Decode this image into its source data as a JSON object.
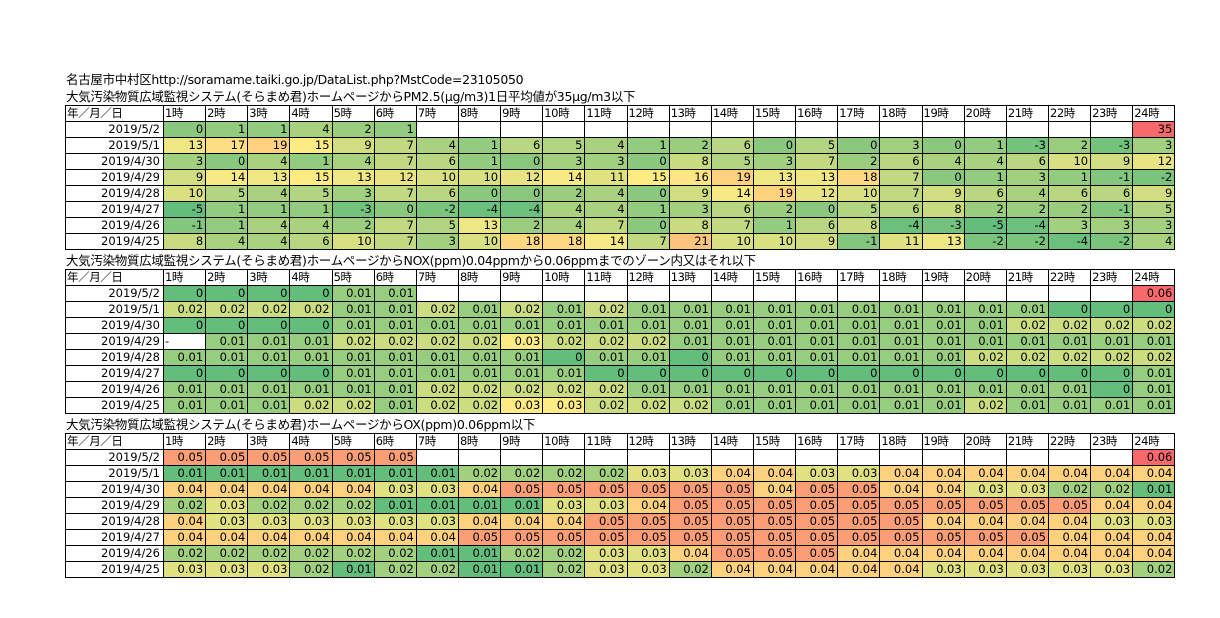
{
  "header": {
    "line1": "名古屋市中村区http://soramame.taiki.go.jp/DataList.php?MstCode=23105050",
    "pm_title": "大気汚染物質広域監視システム(そらまめ君)ホームページからPM2.5(μg/m3)1日平均値が35μg/m3以下",
    "nox_title": "大気汚染物質広域監視システム(そらまめ君)ホームページからNOX(ppm)0.04ppmから0.06ppmまでのゾーン内又はそれ以下",
    "ox_title": "大気汚染物質広域監視システム(そらまめ君)ホームページからOX(ppm)0.06ppm以下"
  },
  "column_header": {
    "corner": "年／月／日",
    "hours": [
      "1時",
      "2時",
      "3時",
      "4時",
      "5時",
      "6時",
      "7時",
      "8時",
      "9時",
      "10時",
      "11時",
      "12時",
      "13時",
      "14時",
      "15時",
      "16時",
      "17時",
      "18時",
      "19時",
      "20時",
      "21時",
      "22時",
      "23時",
      "24時"
    ]
  },
  "colors": {
    "green": "#63be7b",
    "yellow": "#ffeb84",
    "red": "#f8696b",
    "white": "#ffffff"
  },
  "tables": [
    {
      "id": "pm25",
      "scale": [
        -5,
        35
      ],
      "rows": [
        {
          "date": "2019/5/2",
          "values": [
            "0",
            "1",
            "1",
            "4",
            "2",
            "1",
            "",
            "",
            "",
            "",
            "",
            "",
            "",
            "",
            "",
            "",
            "",
            "",
            "",
            "",
            "",
            "",
            "",
            "35"
          ]
        },
        {
          "date": "2019/5/1",
          "values": [
            "13",
            "17",
            "19",
            "15",
            "9",
            "7",
            "4",
            "1",
            "6",
            "5",
            "4",
            "1",
            "2",
            "6",
            "0",
            "5",
            "0",
            "3",
            "0",
            "1",
            "-3",
            "2",
            "-3",
            "3"
          ]
        },
        {
          "date": "2019/4/30",
          "values": [
            "3",
            "0",
            "4",
            "1",
            "4",
            "7",
            "6",
            "1",
            "0",
            "3",
            "3",
            "0",
            "8",
            "5",
            "3",
            "7",
            "2",
            "6",
            "4",
            "4",
            "6",
            "10",
            "9",
            "12"
          ]
        },
        {
          "date": "2019/4/29",
          "values": [
            "9",
            "14",
            "13",
            "15",
            "13",
            "12",
            "10",
            "10",
            "12",
            "14",
            "11",
            "15",
            "16",
            "19",
            "13",
            "13",
            "18",
            "7",
            "0",
            "1",
            "3",
            "1",
            "-1",
            "-2"
          ]
        },
        {
          "date": "2019/4/28",
          "values": [
            "10",
            "5",
            "4",
            "5",
            "3",
            "7",
            "6",
            "0",
            "0",
            "2",
            "4",
            "0",
            "9",
            "14",
            "19",
            "12",
            "10",
            "7",
            "9",
            "6",
            "4",
            "6",
            "6",
            "9"
          ]
        },
        {
          "date": "2019/4/27",
          "values": [
            "-5",
            "1",
            "1",
            "1",
            "-3",
            "0",
            "-2",
            "-4",
            "-4",
            "4",
            "4",
            "1",
            "3",
            "6",
            "2",
            "0",
            "5",
            "6",
            "8",
            "2",
            "2",
            "2",
            "-1",
            "5"
          ]
        },
        {
          "date": "2019/4/26",
          "values": [
            "-1",
            "1",
            "4",
            "4",
            "2",
            "7",
            "5",
            "13",
            "2",
            "4",
            "7",
            "0",
            "8",
            "7",
            "1",
            "6",
            "8",
            "-4",
            "-3",
            "-5",
            "-4",
            "3",
            "3",
            "3"
          ]
        },
        {
          "date": "2019/4/25",
          "values": [
            "8",
            "4",
            "4",
            "6",
            "10",
            "7",
            "3",
            "10",
            "18",
            "18",
            "14",
            "7",
            "21",
            "10",
            "10",
            "9",
            "-1",
            "11",
            "13",
            "-2",
            "-2",
            "-4",
            "-2",
            "4"
          ]
        }
      ]
    },
    {
      "id": "nox",
      "scale": [
        0,
        0.06
      ],
      "rows": [
        {
          "date": "2019/5/2",
          "values": [
            "0",
            "0",
            "0",
            "0",
            "0.01",
            "0.01",
            "",
            "",
            "",
            "",
            "",
            "",
            "",
            "",
            "",
            "",
            "",
            "",
            "",
            "",
            "",
            "",
            "",
            "0.06"
          ]
        },
        {
          "date": "2019/5/1",
          "values": [
            "0.02",
            "0.02",
            "0.02",
            "0.02",
            "0.01",
            "0.01",
            "0.02",
            "0.01",
            "0.02",
            "0.01",
            "0.02",
            "0.01",
            "0.01",
            "0.01",
            "0.01",
            "0.01",
            "0.01",
            "0.01",
            "0.01",
            "0.01",
            "0.01",
            "0",
            "0",
            "0"
          ]
        },
        {
          "date": "2019/4/30",
          "values": [
            "0",
            "0",
            "0",
            "0",
            "0.01",
            "0.01",
            "0.01",
            "0.01",
            "0.01",
            "0.01",
            "0.01",
            "0.01",
            "0.01",
            "0.01",
            "0.01",
            "0.01",
            "0.01",
            "0.01",
            "0.01",
            "0.01",
            "0.02",
            "0.02",
            "0.02",
            "0.02"
          ]
        },
        {
          "date": "2019/4/29",
          "values": [
            "-",
            "0.01",
            "0.01",
            "0.01",
            "0.02",
            "0.02",
            "0.02",
            "0.02",
            "0.03",
            "0.02",
            "0.02",
            "0.02",
            "0.01",
            "0.01",
            "0.01",
            "0.01",
            "0.01",
            "0.01",
            "0.01",
            "0.01",
            "0.01",
            "0.01",
            "0.01",
            "0.01"
          ]
        },
        {
          "date": "2019/4/28",
          "values": [
            "0.01",
            "0.01",
            "0.01",
            "0.01",
            "0.01",
            "0.01",
            "0.01",
            "0.01",
            "0.01",
            "0",
            "0.01",
            "0.01",
            "0",
            "0.01",
            "0.01",
            "0.01",
            "0.01",
            "0.01",
            "0.01",
            "0.02",
            "0.02",
            "0.02",
            "0.02",
            "0.02"
          ]
        },
        {
          "date": "2019/4/27",
          "values": [
            "0",
            "0",
            "0",
            "0",
            "0.01",
            "0.01",
            "0.01",
            "0.01",
            "0.01",
            "0.01",
            "0",
            "0",
            "0",
            "0",
            "0",
            "0",
            "0",
            "0",
            "0",
            "0",
            "0",
            "0",
            "0",
            "0.01"
          ]
        },
        {
          "date": "2019/4/26",
          "values": [
            "0.01",
            "0.01",
            "0.01",
            "0.01",
            "0.01",
            "0.01",
            "0.02",
            "0.02",
            "0.02",
            "0.02",
            "0.02",
            "0.01",
            "0.01",
            "0.01",
            "0.01",
            "0.01",
            "0.01",
            "0.01",
            "0.01",
            "0.01",
            "0.01",
            "0.01",
            "0",
            "0.01"
          ]
        },
        {
          "date": "2019/4/25",
          "values": [
            "0.01",
            "0.01",
            "0.01",
            "0.02",
            "0.02",
            "0.01",
            "0.02",
            "0.02",
            "0.03",
            "0.03",
            "0.02",
            "0.02",
            "0.02",
            "0.01",
            "0.01",
            "0.01",
            "0.01",
            "0.01",
            "0.01",
            "0.02",
            "0.01",
            "0.01",
            "0.01",
            "0.01"
          ]
        }
      ]
    },
    {
      "id": "ox",
      "scale": [
        0.01,
        0.06
      ],
      "rows": [
        {
          "date": "2019/5/2",
          "values": [
            "0.05",
            "0.05",
            "0.05",
            "0.05",
            "0.05",
            "0.05",
            "",
            "",
            "",
            "",
            "",
            "",
            "",
            "",
            "",
            "",
            "",
            "",
            "",
            "",
            "",
            "",
            "",
            "0.06"
          ]
        },
        {
          "date": "2019/5/1",
          "values": [
            "0.01",
            "0.01",
            "0.01",
            "0.01",
            "0.01",
            "0.01",
            "0.01",
            "0.02",
            "0.02",
            "0.02",
            "0.02",
            "0.03",
            "0.03",
            "0.04",
            "0.04",
            "0.03",
            "0.03",
            "0.04",
            "0.04",
            "0.04",
            "0.04",
            "0.04",
            "0.04",
            "0.04"
          ]
        },
        {
          "date": "2019/4/30",
          "values": [
            "0.04",
            "0.04",
            "0.04",
            "0.04",
            "0.04",
            "0.03",
            "0.03",
            "0.04",
            "0.05",
            "0.05",
            "0.05",
            "0.05",
            "0.05",
            "0.05",
            "0.04",
            "0.05",
            "0.05",
            "0.04",
            "0.04",
            "0.03",
            "0.03",
            "0.02",
            "0.02",
            "0.01"
          ]
        },
        {
          "date": "2019/4/29",
          "values": [
            "0.02",
            "0.03",
            "0.02",
            "0.02",
            "0.02",
            "0.01",
            "0.01",
            "0.01",
            "0.01",
            "0.03",
            "0.03",
            "0.04",
            "0.05",
            "0.05",
            "0.05",
            "0.05",
            "0.05",
            "0.05",
            "0.05",
            "0.05",
            "0.05",
            "0.05",
            "0.04",
            "0.04"
          ]
        },
        {
          "date": "2019/4/28",
          "values": [
            "0.04",
            "0.03",
            "0.03",
            "0.03",
            "0.03",
            "0.03",
            "0.03",
            "0.04",
            "0.04",
            "0.04",
            "0.05",
            "0.05",
            "0.05",
            "0.05",
            "0.05",
            "0.05",
            "0.05",
            "0.05",
            "0.04",
            "0.04",
            "0.04",
            "0.04",
            "0.03",
            "0.03"
          ]
        },
        {
          "date": "2019/4/27",
          "values": [
            "0.04",
            "0.04",
            "0.04",
            "0.04",
            "0.04",
            "0.04",
            "0.04",
            "0.05",
            "0.05",
            "0.05",
            "0.05",
            "0.05",
            "0.05",
            "0.05",
            "0.05",
            "0.05",
            "0.05",
            "0.05",
            "0.05",
            "0.05",
            "0.05",
            "0.04",
            "0.04",
            "0.04"
          ]
        },
        {
          "date": "2019/4/26",
          "values": [
            "0.02",
            "0.02",
            "0.02",
            "0.02",
            "0.02",
            "0.02",
            "0.01",
            "0.01",
            "0.02",
            "0.02",
            "0.03",
            "0.03",
            "0.04",
            "0.05",
            "0.05",
            "0.05",
            "0.04",
            "0.04",
            "0.04",
            "0.04",
            "0.04",
            "0.04",
            "0.04",
            "0.04"
          ]
        },
        {
          "date": "2019/4/25",
          "values": [
            "0.03",
            "0.03",
            "0.03",
            "0.02",
            "0.01",
            "0.02",
            "0.02",
            "0.01",
            "0.01",
            "0.02",
            "0.03",
            "0.03",
            "0.02",
            "0.04",
            "0.04",
            "0.04",
            "0.04",
            "0.04",
            "0.03",
            "0.03",
            "0.03",
            "0.03",
            "0.03",
            "0.02"
          ]
        }
      ]
    }
  ]
}
